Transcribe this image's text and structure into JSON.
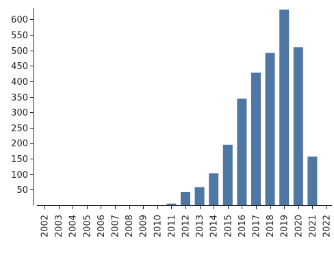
{
  "chart_data": {
    "type": "bar",
    "title": "",
    "xlabel": "",
    "ylabel": "",
    "categories": [
      "2002",
      "2003",
      "2004",
      "2005",
      "2006",
      "2007",
      "2008",
      "2009",
      "2010",
      "2011",
      "2012",
      "2013",
      "2014",
      "2015",
      "2016",
      "2017",
      "2018",
      "2019",
      "2020",
      "2021",
      "2022"
    ],
    "values": [
      0,
      0,
      0,
      0,
      0,
      0,
      0,
      0,
      0,
      5,
      42,
      58,
      103,
      195,
      344,
      428,
      492,
      632,
      510,
      157,
      0
    ],
    "y_ticks": [
      50,
      100,
      150,
      200,
      250,
      300,
      350,
      400,
      450,
      500,
      550,
      600
    ],
    "y_tick_labels": [
      "50",
      "100",
      "150",
      "200",
      "250",
      "300",
      "350",
      "400",
      "450",
      "500",
      "550",
      "600"
    ],
    "ylim": [
      0,
      632
    ],
    "grid": false,
    "legend": "none",
    "bar_color": "#4f77a3",
    "axis_color": "#222222"
  }
}
